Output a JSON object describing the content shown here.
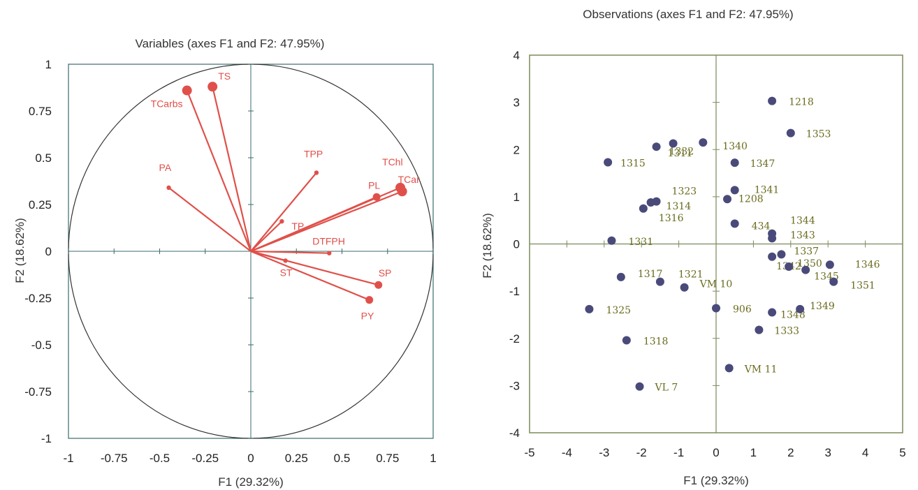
{
  "colors": {
    "variable": "#e0504a",
    "frame_left": "#3b6b6b",
    "frame_right": "#7a8a5a",
    "observation_point": "#4a4a7a",
    "observation_label": "#6b6b1f"
  },
  "chart_data": [
    {
      "type": "scatter",
      "subtype": "correlation-circle",
      "title": "Variables (axes F1 and F2: 47.95%)",
      "xlabel": "F1 (29.32%)",
      "ylabel": "F2 (18.62%)",
      "xlim": [
        -1,
        1
      ],
      "ylim": [
        -1,
        1
      ],
      "xticks": [
        "-1",
        "-0.75",
        "-0.5",
        "-0.25",
        "0",
        "0.25",
        "0.5",
        "0.75",
        "1"
      ],
      "yticks": [
        "1",
        "0.75",
        "0.5",
        "0.25",
        "0",
        "-0.25",
        "-0.5",
        "-0.75",
        "-1"
      ],
      "points": [
        {
          "label": "TS",
          "x": -0.21,
          "y": 0.88
        },
        {
          "label": "TCarbs",
          "x": -0.35,
          "y": 0.86
        },
        {
          "label": "TPP",
          "x": 0.36,
          "y": 0.42
        },
        {
          "label": "PA",
          "x": -0.45,
          "y": 0.34
        },
        {
          "label": "TChl",
          "x": 0.82,
          "y": 0.34
        },
        {
          "label": "TCar",
          "x": 0.83,
          "y": 0.32
        },
        {
          "label": "PL",
          "x": 0.69,
          "y": 0.29
        },
        {
          "label": "TP",
          "x": 0.17,
          "y": 0.16
        },
        {
          "label": "DTFPH",
          "x": 0.43,
          "y": -0.01
        },
        {
          "label": "ST",
          "x": 0.19,
          "y": -0.05
        },
        {
          "label": "SP",
          "x": 0.7,
          "y": -0.18
        },
        {
          "label": "PY",
          "x": 0.65,
          "y": -0.26
        }
      ]
    },
    {
      "type": "scatter",
      "title": "Observations (axes F1 and F2: 47.95%)",
      "xlabel": "F1 (29.32%)",
      "ylabel": "F2 (18.62%)",
      "xlim": [
        -5,
        5
      ],
      "ylim": [
        -4,
        4
      ],
      "xticks": [
        "-5",
        "-4",
        "-3",
        "-2",
        "-1",
        "0",
        "1",
        "2",
        "3",
        "4",
        "5"
      ],
      "yticks": [
        "4",
        "3",
        "2",
        "1",
        "0",
        "-1",
        "-2",
        "-3",
        "-4"
      ],
      "points": [
        {
          "label": "1218",
          "x": 1.5,
          "y": 3.03
        },
        {
          "label": "1353",
          "x": 2.0,
          "y": 2.35
        },
        {
          "label": "1332",
          "x": -1.15,
          "y": 2.13
        },
        {
          "label": "1340",
          "x": -0.35,
          "y": 2.15
        },
        {
          "label": "1311",
          "x": -1.6,
          "y": 2.06
        },
        {
          "label": "1315",
          "x": -2.9,
          "y": 1.73
        },
        {
          "label": "1347",
          "x": 0.5,
          "y": 1.72
        },
        {
          "label": "1341",
          "x": 0.5,
          "y": 1.14
        },
        {
          "label": "1208",
          "x": 0.3,
          "y": 0.95
        },
        {
          "label": "1323",
          "x": -1.6,
          "y": 0.9
        },
        {
          "label": "1314",
          "x": -1.75,
          "y": 0.88
        },
        {
          "label": "1316",
          "x": -1.95,
          "y": 0.75
        },
        {
          "label": "434",
          "x": 0.5,
          "y": 0.43
        },
        {
          "label": "1344",
          "x": 1.5,
          "y": 0.22
        },
        {
          "label": "1343",
          "x": 1.5,
          "y": 0.12
        },
        {
          "label": "1331",
          "x": -2.8,
          "y": 0.07
        },
        {
          "label": "1337",
          "x": 1.75,
          "y": -0.22
        },
        {
          "label": "1342",
          "x": 1.5,
          "y": -0.27
        },
        {
          "label": "1350",
          "x": 1.95,
          "y": -0.48
        },
        {
          "label": "1346",
          "x": 3.05,
          "y": -0.44
        },
        {
          "label": "1345",
          "x": 2.4,
          "y": -0.55
        },
        {
          "label": "1351",
          "x": 3.15,
          "y": -0.8
        },
        {
          "label": "1317",
          "x": -2.55,
          "y": -0.7
        },
        {
          "label": "1321",
          "x": -1.5,
          "y": -0.8
        },
        {
          "label": "VM 10",
          "x": -0.85,
          "y": -0.92
        },
        {
          "label": "1325",
          "x": -3.4,
          "y": -1.38
        },
        {
          "label": "906",
          "x": 0.0,
          "y": -1.36
        },
        {
          "label": "1348",
          "x": 1.5,
          "y": -1.45
        },
        {
          "label": "1349",
          "x": 2.25,
          "y": -1.38
        },
        {
          "label": "1333",
          "x": 1.15,
          "y": -1.82
        },
        {
          "label": "1318",
          "x": -2.4,
          "y": -2.04
        },
        {
          "label": "VM 11",
          "x": 0.35,
          "y": -2.63
        },
        {
          "label": "VL 7",
          "x": -2.05,
          "y": -3.02
        }
      ]
    }
  ]
}
